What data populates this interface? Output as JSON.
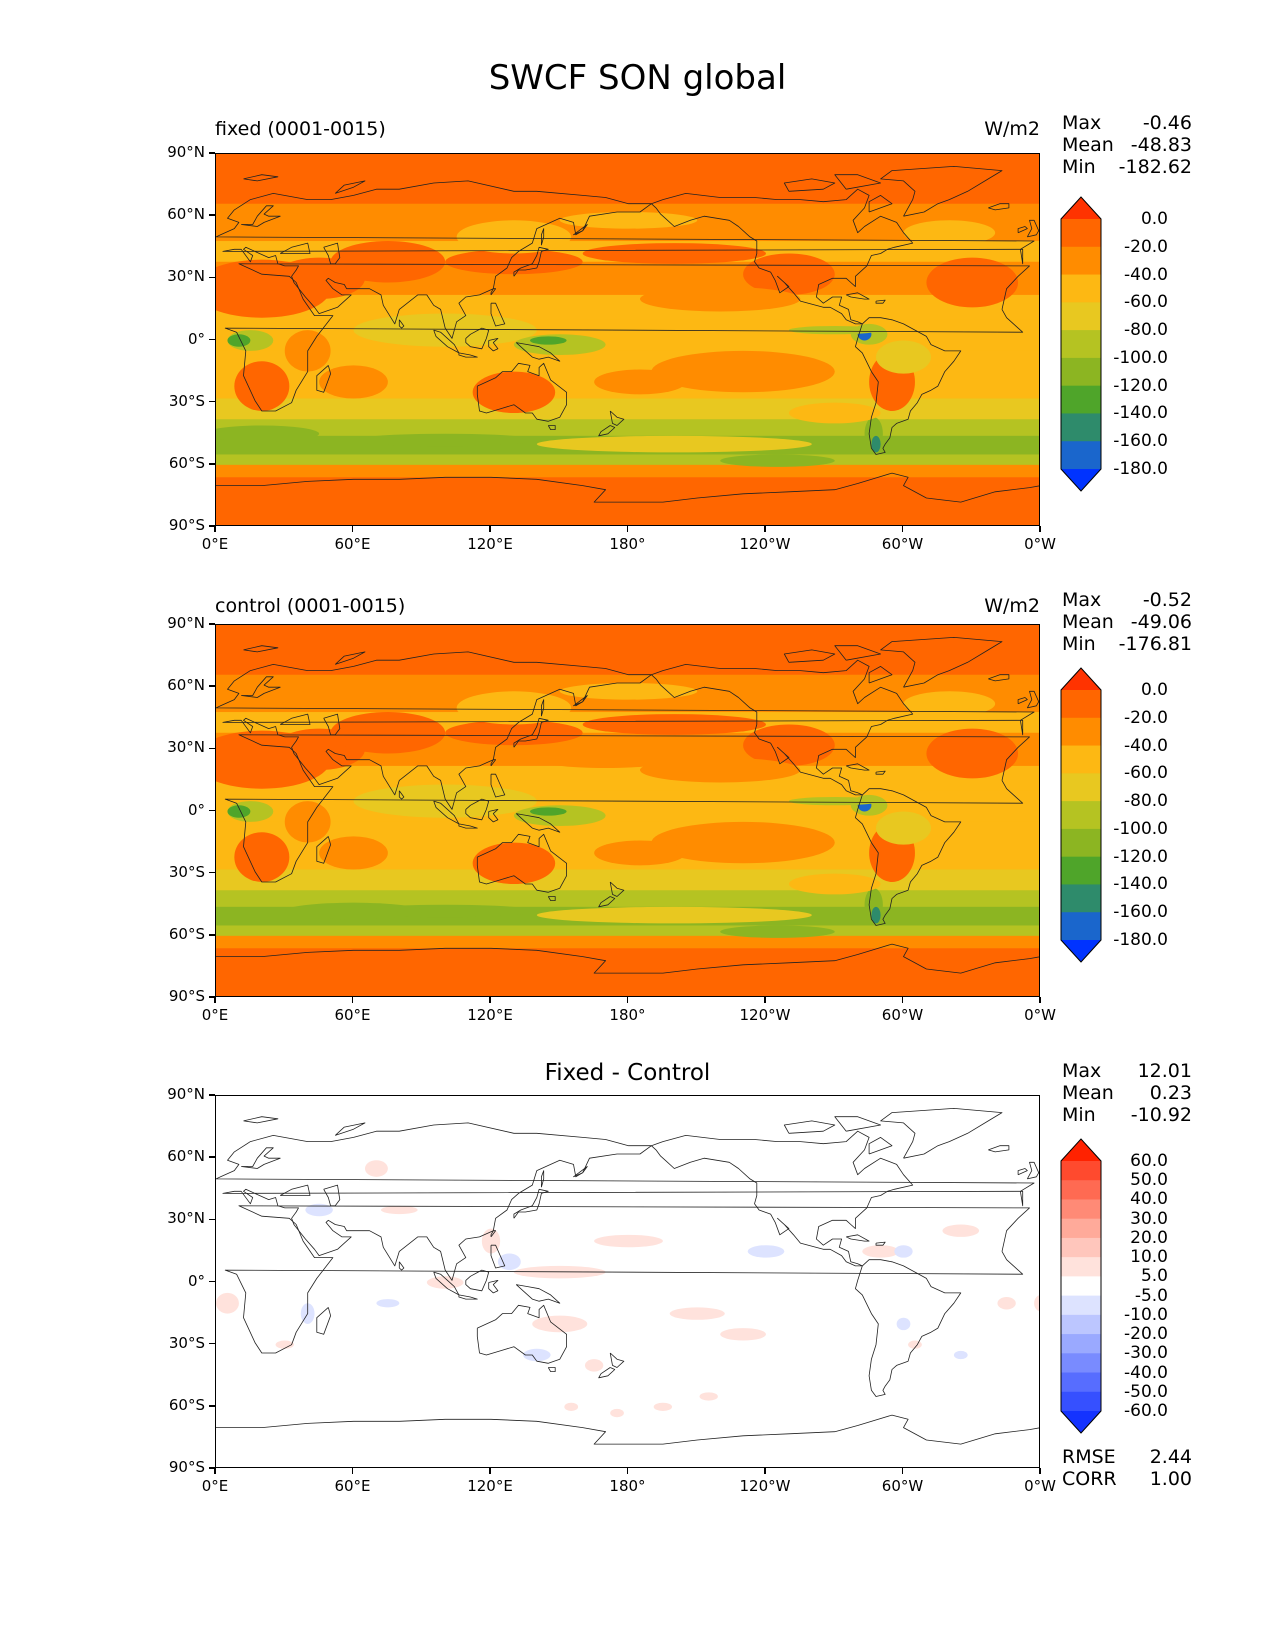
{
  "figure": {
    "title": "SWCF SON global"
  },
  "axes": {
    "y_ticks": [
      "90°N",
      "60°N",
      "30°N",
      "0°",
      "30°S",
      "60°S",
      "90°S"
    ],
    "x_ticks": [
      "0°E",
      "60°E",
      "120°E",
      "180°",
      "120°W",
      "60°W",
      "0°W"
    ]
  },
  "panels": [
    {
      "id": "fixed",
      "title": "fixed (0001-0015)",
      "units": "W/m2",
      "stats": [
        {
          "label": "Max",
          "value": "-0.46"
        },
        {
          "label": "Mean",
          "value": "-48.83"
        },
        {
          "label": "Min",
          "value": "-182.62"
        }
      ]
    },
    {
      "id": "control",
      "title": "control (0001-0015)",
      "units": "W/m2",
      "stats": [
        {
          "label": "Max",
          "value": "-0.52"
        },
        {
          "label": "Mean",
          "value": "-49.06"
        },
        {
          "label": "Min",
          "value": "-176.81"
        }
      ]
    },
    {
      "id": "diff",
      "title": "Fixed - Control",
      "units": "",
      "stats": [
        {
          "label": "Max",
          "value": "12.01"
        },
        {
          "label": "Mean",
          "value": "0.23"
        },
        {
          "label": "Min",
          "value": "-10.92"
        }
      ],
      "extra_stats": [
        {
          "label": "RMSE",
          "value": "2.44"
        },
        {
          "label": "CORR",
          "value": "1.00"
        }
      ]
    }
  ],
  "colorbars": {
    "field": {
      "labels": [
        "0.0",
        "-20.0",
        "-40.0",
        "-60.0",
        "-80.0",
        "-100.0",
        "-120.0",
        "-140.0",
        "-160.0",
        "-180.0"
      ],
      "colors": [
        "#ff3300",
        "#ff6600",
        "#ff8c00",
        "#fdb813",
        "#e8c820",
        "#b5c322",
        "#8cb522",
        "#4fa52a",
        "#2e8b6b",
        "#1a66cc",
        "#0033ff"
      ]
    },
    "diff": {
      "labels": [
        "60.0",
        "50.0",
        "40.0",
        "30.0",
        "20.0",
        "10.0",
        "5.0",
        "-5.0",
        "-10.0",
        "-20.0",
        "-30.0",
        "-40.0",
        "-50.0",
        "-60.0"
      ],
      "colors": [
        "#ff2200",
        "#ff4a2e",
        "#ff6a52",
        "#ff8a76",
        "#ffaa9a",
        "#ffc6bc",
        "#ffe2dc",
        "#ffffff",
        "#dde3ff",
        "#bcc6ff",
        "#9aa9ff",
        "#798bff",
        "#576dff",
        "#3650ff",
        "#1433ff"
      ]
    }
  }
}
